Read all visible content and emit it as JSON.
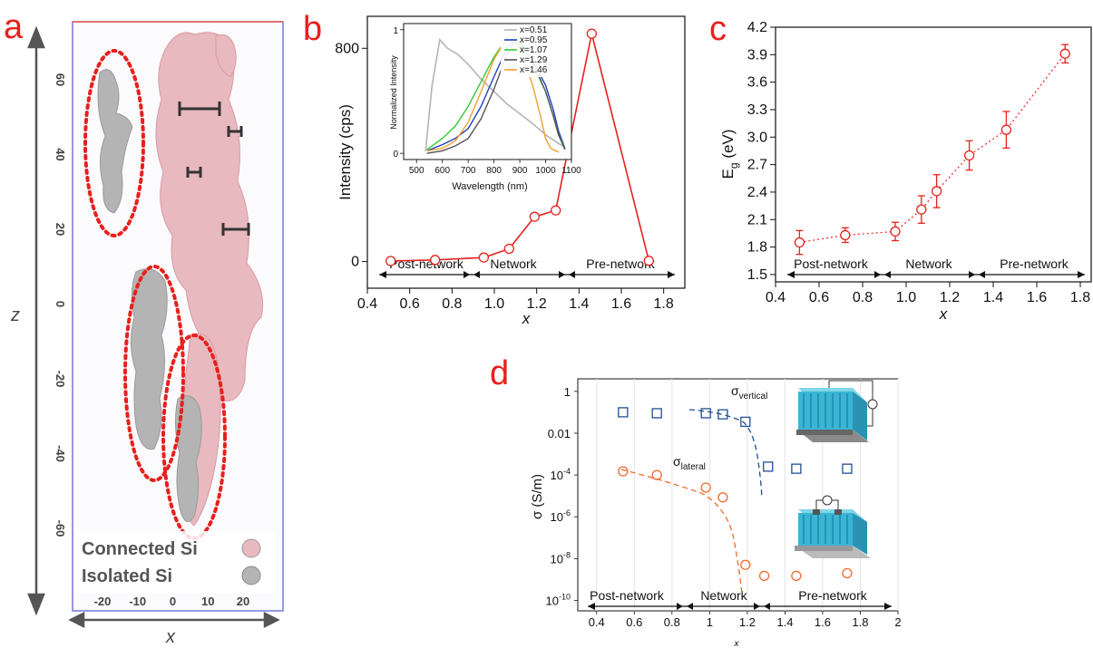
{
  "panel_labels": {
    "a": "a",
    "b": "b",
    "c": "c",
    "d": "d"
  },
  "colors": {
    "panel_label": "#e8201c",
    "red": "#e8201c",
    "blue": "#1f4e96",
    "orange": "#f36a2c",
    "pink": "#e8b9bf",
    "gray": "#b4b4b4"
  },
  "panel_a": {
    "axis_z": "z",
    "axis_x": "x",
    "z_ticks": [
      "60",
      "40",
      "20",
      "0",
      "-20",
      "-40",
      "-60"
    ],
    "x_ticks": [
      "-20",
      "-10",
      "0",
      "10",
      "20"
    ],
    "legend": [
      {
        "label": "Connected Si",
        "color": "#e8b9bf"
      },
      {
        "label": "Isolated Si",
        "color": "#b4b4b4"
      }
    ]
  },
  "chart_data": [
    {
      "type": "line",
      "panel": "b",
      "ylabel": "Intensity (cps)",
      "xlabel": "x",
      "xlim": [
        0.4,
        1.9
      ],
      "ylim": [
        -100,
        920
      ],
      "x_ticks": [
        "0.4",
        "0.6",
        "0.8",
        "1.0",
        "1.2",
        "1.4",
        "1.6",
        "1.8"
      ],
      "y_ticks": [
        "0",
        "800"
      ],
      "series": [
        {
          "x": [
            0.51,
            0.72,
            0.95,
            1.07,
            1.19,
            1.29,
            1.46,
            1.73
          ],
          "y": [
            2,
            6,
            15,
            48,
            168,
            192,
            855,
            3
          ]
        }
      ],
      "regions": [
        "Post-network",
        "Network",
        "Pre-network"
      ],
      "inset": {
        "type": "line",
        "xlabel": "Wavelength (nm)",
        "ylabel": "Normalized Intensity",
        "xlim": [
          450,
          1100
        ],
        "ylim": [
          -0.05,
          1.05
        ],
        "x_ticks": [
          "500",
          "600",
          "700",
          "800",
          "900",
          "1000",
          "1100"
        ],
        "y_ticks": [
          "0",
          "1"
        ],
        "series": [
          {
            "name": "x=0.51",
            "color": "#b4b4b4",
            "x": [
              535,
              560,
              590,
              620,
              660,
              700,
              750,
              800,
              850,
              900,
              950,
              1000,
              1050,
              1075
            ],
            "y": [
              0.02,
              0.55,
              0.92,
              0.85,
              0.8,
              0.72,
              0.6,
              0.5,
              0.4,
              0.32,
              0.24,
              0.15,
              0.08,
              0.05
            ]
          },
          {
            "name": "x=0.95",
            "color": "#1f3fbf",
            "x": [
              540,
              600,
              650,
              700,
              750,
              800,
              850,
              880,
              900,
              950,
              1000,
              1030,
              1050,
              1075
            ],
            "y": [
              0.02,
              0.07,
              0.12,
              0.2,
              0.38,
              0.62,
              0.85,
              0.92,
              0.9,
              0.75,
              0.55,
              0.35,
              0.18,
              0.04
            ]
          },
          {
            "name": "x=1.07",
            "color": "#33cc33",
            "x": [
              540,
              600,
              650,
              700,
              750,
              800,
              840,
              870,
              900,
              950,
              1000,
              1030,
              1050,
              1075
            ],
            "y": [
              0.03,
              0.12,
              0.22,
              0.38,
              0.58,
              0.78,
              0.9,
              0.92,
              0.88,
              0.72,
              0.5,
              0.3,
              0.15,
              0.04
            ]
          },
          {
            "name": "x=1.29",
            "color": "#555555",
            "x": [
              540,
              600,
              650,
              700,
              750,
              800,
              850,
              880,
              910,
              950,
              1000,
              1030,
              1050,
              1075
            ],
            "y": [
              0.0,
              0.02,
              0.06,
              0.12,
              0.28,
              0.52,
              0.8,
              0.9,
              0.88,
              0.74,
              0.5,
              0.3,
              0.15,
              0.03
            ]
          },
          {
            "name": "x=1.46",
            "color": "#f0a030",
            "x": [
              540,
              600,
              650,
              700,
              750,
              800,
              840,
              870,
              900,
              950,
              980,
              1000,
              1020,
              1050
            ],
            "y": [
              0.02,
              0.04,
              0.1,
              0.25,
              0.5,
              0.76,
              0.9,
              0.92,
              0.85,
              0.55,
              0.3,
              0.12,
              0.04,
              0.01
            ]
          }
        ]
      }
    },
    {
      "type": "line",
      "panel": "c",
      "ylabel_main": "E",
      "ylabel_sub": "g",
      "ylabel_unit": " (eV)",
      "xlabel": "x",
      "xlim": [
        0.4,
        1.85
      ],
      "ylim": [
        1.42,
        4.2
      ],
      "x_ticks": [
        "0.4",
        "0.6",
        "0.8",
        "1.0",
        "1.2",
        "1.4",
        "1.6",
        "1.8"
      ],
      "y_ticks": [
        "1.5",
        "1.8",
        "2.1",
        "2.4",
        "2.7",
        "3.0",
        "3.3",
        "3.6",
        "3.9",
        "4.2"
      ],
      "series": [
        {
          "x": [
            0.51,
            0.72,
            0.95,
            1.07,
            1.14,
            1.29,
            1.46,
            1.73
          ],
          "y": [
            1.85,
            1.93,
            1.97,
            2.21,
            2.41,
            2.8,
            3.08,
            3.91
          ],
          "err": [
            0.13,
            0.08,
            0.1,
            0.15,
            0.18,
            0.16,
            0.2,
            0.1
          ]
        }
      ],
      "regions": [
        "Post-network",
        "Network",
        "Pre-network"
      ]
    },
    {
      "type": "scatter",
      "panel": "d",
      "ylabel": "σ (S/m)",
      "xlabel": "x",
      "xlim": [
        0.3,
        2.0
      ],
      "y_log_range": [
        -10.5,
        0.6
      ],
      "x_ticks": [
        "0.4",
        "0.6",
        "0.8",
        "1",
        "1.2",
        "1.4",
        "1.6",
        "1.8",
        "2"
      ],
      "y_ticks": [
        {
          "b": "",
          "e": "",
          "text": "1",
          "exp": 0
        },
        {
          "b": "",
          "e": "",
          "text": "0.01",
          "exp": -2
        },
        {
          "b": "10",
          "e": "-4",
          "text": "",
          "exp": -4
        },
        {
          "b": "10",
          "e": "-6",
          "text": "",
          "exp": -6
        },
        {
          "b": "10",
          "e": "-8",
          "text": "",
          "exp": -8
        },
        {
          "b": "10",
          "e": "-10",
          "text": "",
          "exp": -10
        }
      ],
      "series": [
        {
          "name_main": "σ",
          "name_sub": "vertical",
          "color": "#1f4e96",
          "marker": "square",
          "x": [
            0.54,
            0.72,
            0.98,
            1.07,
            1.19,
            1.31,
            1.46,
            1.73
          ],
          "y": [
            0.1,
            0.09,
            0.09,
            0.08,
            0.035,
            0.00025,
            0.0002,
            0.0002
          ]
        },
        {
          "name_main": "σ",
          "name_sub": "lateral",
          "color": "#f36a2c",
          "marker": "circle",
          "x": [
            0.54,
            0.72,
            0.98,
            1.07,
            1.19,
            1.29,
            1.46,
            1.73
          ],
          "y": [
            0.00015,
            0.0001,
            2.5e-05,
            8.5e-06,
            5e-09,
            1.5e-09,
            1.5e-09,
            2e-09
          ]
        }
      ],
      "regions": [
        "Post-network",
        "Network",
        "Pre-network"
      ]
    }
  ]
}
